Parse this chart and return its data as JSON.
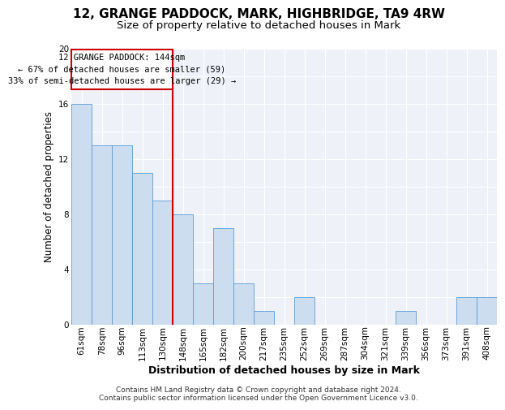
{
  "title_line1": "12, GRANGE PADDOCK, MARK, HIGHBRIDGE, TA9 4RW",
  "title_line2": "Size of property relative to detached houses in Mark",
  "xlabel": "Distribution of detached houses by size in Mark",
  "ylabel": "Number of detached properties",
  "categories": [
    "61sqm",
    "78sqm",
    "96sqm",
    "113sqm",
    "130sqm",
    "148sqm",
    "165sqm",
    "182sqm",
    "200sqm",
    "217sqm",
    "235sqm",
    "252sqm",
    "269sqm",
    "287sqm",
    "304sqm",
    "321sqm",
    "339sqm",
    "356sqm",
    "373sqm",
    "391sqm",
    "408sqm"
  ],
  "values": [
    16,
    13,
    13,
    11,
    9,
    8,
    3,
    7,
    3,
    1,
    0,
    2,
    0,
    0,
    0,
    0,
    1,
    0,
    0,
    2,
    2
  ],
  "bar_color": "#ccddf0",
  "bar_edge_color": "#5b9bd5",
  "vline_color": "#cc0000",
  "annotation_line1": "12 GRANGE PADDOCK: 144sqm",
  "annotation_line2": "← 67% of detached houses are smaller (59)",
  "annotation_line3": "33% of semi-detached houses are larger (29) →",
  "annotation_box_color": "#cc0000",
  "ylim": [
    0,
    20
  ],
  "ytick_values": [
    0,
    2,
    4,
    6,
    8,
    10,
    12,
    14,
    16,
    18,
    20
  ],
  "ytick_labels": [
    "0",
    "",
    "4",
    "",
    "8",
    "",
    "12",
    "",
    "16",
    "",
    "20"
  ],
  "footer_line1": "Contains HM Land Registry data © Crown copyright and database right 2024.",
  "footer_line2": "Contains public sector information licensed under the Open Government Licence v3.0.",
  "background_color": "#eef2f8",
  "grid_color": "#ffffff",
  "title_fontsize": 11,
  "subtitle_fontsize": 9.5,
  "axis_label_fontsize": 8.5,
  "tick_fontsize": 7.5,
  "annotation_fontsize": 7.5,
  "footer_fontsize": 6.5
}
